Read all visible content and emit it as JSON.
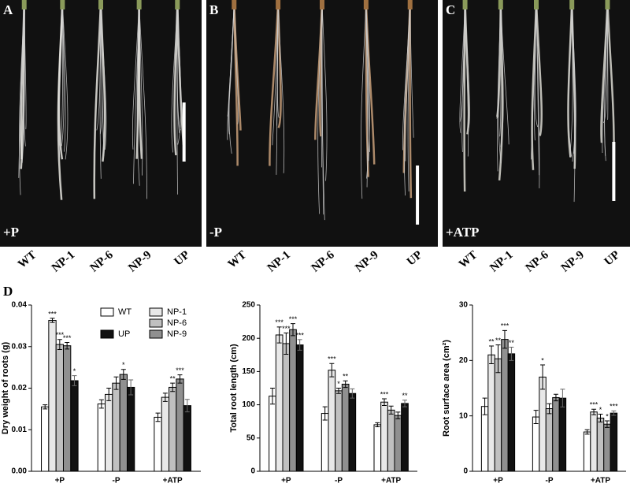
{
  "figure": {
    "panels": [
      {
        "label": "A",
        "treatment": "+P",
        "genotypes": [
          "WT",
          "NP-1",
          "NP-6",
          "NP-9",
          "UP"
        ]
      },
      {
        "label": "B",
        "treatment": "-P",
        "genotypes": [
          "WT",
          "NP-1",
          "NP-6",
          "NP-9",
          "UP"
        ]
      },
      {
        "label": "C",
        "treatment": "+ATP",
        "genotypes": [
          "WT",
          "NP-1",
          "NP-6",
          "NP-9",
          "UP"
        ]
      }
    ],
    "panel_d_label": "D"
  },
  "chart_data": [
    {
      "type": "bar",
      "ylabel": "Dry weight of roots (g)",
      "categories": [
        "+P",
        "-P",
        "+ATP"
      ],
      "ylim": [
        0,
        0.04
      ],
      "yticks": [
        {
          "value": 0,
          "label": "0.00"
        },
        0.01,
        0.02,
        0.03,
        0.04
      ],
      "legend": true,
      "series": [
        {
          "name": "WT",
          "color": "#ffffff",
          "values": [
            0.0155,
            0.0162,
            0.013
          ],
          "errors": [
            0.0005,
            0.001,
            0.001
          ],
          "significance": [
            null,
            null,
            null
          ]
        },
        {
          "name": "NP-1",
          "color": "#e8e8e8",
          "values": [
            0.0363,
            0.0185,
            0.0178
          ],
          "errors": [
            0.0005,
            0.0015,
            0.001
          ],
          "significance": [
            "***",
            null,
            null
          ]
        },
        {
          "name": "NP-6",
          "color": "#c0c0c0",
          "values": [
            0.0305,
            0.0212,
            0.0202
          ],
          "errors": [
            0.0012,
            0.0015,
            0.001
          ],
          "significance": [
            "***",
            null,
            "**"
          ]
        },
        {
          "name": "NP-9",
          "color": "#909090",
          "values": [
            0.0302,
            0.0233,
            0.0222
          ],
          "errors": [
            0.0008,
            0.0012,
            0.001
          ],
          "significance": [
            "***",
            "*",
            "***"
          ]
        },
        {
          "name": "UP",
          "color": "#111111",
          "values": [
            0.0218,
            0.0202,
            0.0158
          ],
          "errors": [
            0.0012,
            0.0018,
            0.0015
          ],
          "significance": [
            "*",
            null,
            null
          ]
        }
      ]
    },
    {
      "type": "bar",
      "ylabel": "Total root length (cm)",
      "categories": [
        "+P",
        "-P",
        "+ATP"
      ],
      "ylim": [
        0,
        250
      ],
      "yticks": [
        0,
        50,
        100,
        150,
        200,
        250
      ],
      "legend": false,
      "series": [
        {
          "color": "#ffffff",
          "values": [
            113,
            87,
            70
          ],
          "errors": [
            12,
            10,
            3
          ],
          "significance": [
            null,
            null,
            null
          ]
        },
        {
          "color": "#e8e8e8",
          "values": [
            205,
            152,
            104
          ],
          "errors": [
            12,
            10,
            5
          ],
          "significance": [
            "***",
            "***",
            "***"
          ]
        },
        {
          "color": "#c0c0c0",
          "values": [
            192,
            121,
            92
          ],
          "errors": [
            16,
            4,
            6
          ],
          "significance": [
            "***",
            "*",
            null
          ]
        },
        {
          "color": "#909090",
          "values": [
            213,
            131,
            84
          ],
          "errors": [
            9,
            5,
            5
          ],
          "significance": [
            "***",
            "**",
            null
          ]
        },
        {
          "color": "#111111",
          "values": [
            190,
            117,
            102
          ],
          "errors": [
            8,
            7,
            5
          ],
          "significance": [
            "***",
            null,
            "**"
          ]
        }
      ]
    },
    {
      "type": "bar",
      "ylabel": "Root surface area (cm²)",
      "categories": [
        "+P",
        "-P",
        "+ATP"
      ],
      "ylim": [
        0,
        30
      ],
      "yticks": [
        0,
        10,
        20,
        30
      ],
      "legend": false,
      "series": [
        {
          "color": "#ffffff",
          "values": [
            11.7,
            9.8,
            7.1
          ],
          "errors": [
            1.5,
            1.2,
            0.4
          ],
          "significance": [
            null,
            null,
            null
          ]
        },
        {
          "color": "#e8e8e8",
          "values": [
            21,
            17,
            10.7
          ],
          "errors": [
            1.6,
            2.2,
            0.5
          ],
          "significance": [
            "**",
            "*",
            "***"
          ]
        },
        {
          "color": "#c0c0c0",
          "values": [
            20.3,
            11.3,
            9.6
          ],
          "errors": [
            2.5,
            0.9,
            0.7
          ],
          "significance": [
            "**",
            null,
            "*"
          ]
        },
        {
          "color": "#909090",
          "values": [
            23.8,
            13.3,
            8.5
          ],
          "errors": [
            1.6,
            0.6,
            0.6
          ],
          "significance": [
            "***",
            null,
            "*"
          ]
        },
        {
          "color": "#111111",
          "values": [
            21.2,
            13.2,
            10.5
          ],
          "errors": [
            1.2,
            1.6,
            0.4
          ],
          "significance": [
            "**",
            null,
            "***"
          ]
        }
      ]
    }
  ]
}
